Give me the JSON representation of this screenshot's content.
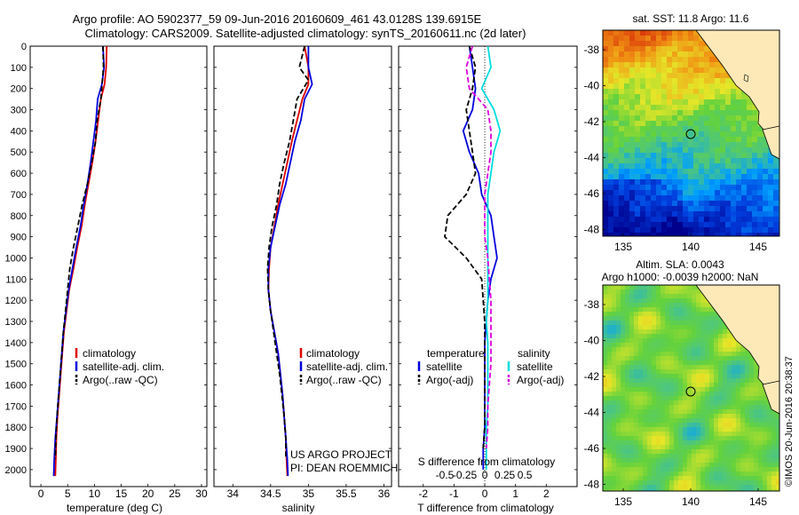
{
  "title_line1": "Argo profile: AO 5902377_59 09-Jun-2016 20160609_461 43.0128S 139.6915E",
  "title_line2": "Climatology: CARS2009. Satellite-adjusted climatology: synTS_20160611.nc (2d later)",
  "colors": {
    "climatology": "#dd0000",
    "satellite": "#0000dd",
    "argo": "#000000",
    "salinity_sat": "#00dddd",
    "salinity_argo": "#dd00dd"
  },
  "depth_ticks": [
    0,
    100,
    200,
    300,
    400,
    500,
    600,
    700,
    800,
    900,
    1000,
    1100,
    1200,
    1300,
    1400,
    1500,
    1600,
    1700,
    1800,
    1900,
    2000
  ],
  "panels": {
    "temp": {
      "xlabel": "temperature (deg C)",
      "ticks": [
        0,
        5,
        10,
        15,
        20,
        25,
        30
      ],
      "legend": [
        "climatology",
        "satellite-adj. clim.",
        "Argo(..raw -QC)"
      ]
    },
    "sal": {
      "xlabel": "salinity",
      "ticks": [
        "34",
        "34.5",
        "35",
        "35.5",
        "36"
      ],
      "legend": [
        "climatology",
        "satellite-adj. clim.",
        "Argo(..raw -QC)"
      ],
      "credit1": "US ARGO PROJECT",
      "credit2": "PI: DEAN ROEMMICH"
    },
    "diff": {
      "xlabel": "T difference from climatology",
      "xlabel_top": "S difference from climatology",
      "ticks_t": [
        "-2",
        "-1",
        "0",
        "1",
        "2"
      ],
      "ticks_s": [
        "-0.5",
        "-0.25",
        "0",
        "0.25",
        "0.5"
      ],
      "legend_t_head": "temperature",
      "legend_t": [
        "satellite",
        "Argo(-adj)"
      ],
      "legend_s_head": "salinity",
      "legend_s": [
        "satellite",
        "Argo(-adj)"
      ]
    }
  },
  "maps": {
    "sst": {
      "title": "sat. SST: 11.8  Argo: 11.6",
      "yticks": [
        "-38",
        "-40",
        "-42",
        "-44",
        "-46",
        "-48"
      ],
      "xticks": [
        "135",
        "140",
        "145"
      ]
    },
    "sla": {
      "title1": "Altim. SLA: 0.0043",
      "title2": "Argo h1000: -0.0039 h2000: NaN",
      "yticks": [
        "-38",
        "-40",
        "-42",
        "-44",
        "-46",
        "-48"
      ],
      "xticks": [
        "135",
        "140",
        "145"
      ]
    }
  },
  "side_stamp": "©IMOS 20-Jun-2016 20:38:37",
  "chart_data": [
    {
      "type": "line",
      "title": "",
      "xlabel": "temperature (deg C)",
      "ylabel": "",
      "xlim": [
        -2,
        31
      ],
      "ylim": [
        2080,
        0
      ],
      "series": [
        {
          "name": "climatology",
          "x": [
            12.3,
            12.2,
            11.9,
            11.2,
            10.7,
            10.2,
            9.6,
            8.9,
            8.2,
            7.6,
            6.8,
            6.1,
            5.3,
            4.8,
            4.3,
            4.0,
            3.7,
            3.4,
            3.1,
            2.9,
            2.8,
            2.7
          ],
          "depth": [
            0,
            100,
            180,
            250,
            350,
            450,
            550,
            650,
            750,
            850,
            950,
            1050,
            1150,
            1250,
            1350,
            1450,
            1550,
            1650,
            1750,
            1850,
            1950,
            2030
          ]
        },
        {
          "name": "satellite-adj. clim.",
          "x": [
            11.6,
            11.8,
            11.4,
            10.6,
            10.3,
            9.8,
            9.3,
            8.7,
            8.0,
            7.4,
            6.6,
            5.9,
            5.2,
            4.7,
            4.2,
            3.9,
            3.6,
            3.3,
            3.0,
            2.7,
            2.5,
            2.4
          ],
          "depth": [
            0,
            100,
            180,
            250,
            350,
            450,
            550,
            650,
            750,
            850,
            950,
            1050,
            1150,
            1250,
            1350,
            1450,
            1550,
            1650,
            1750,
            1850,
            1950,
            2030
          ]
        },
        {
          "name": "Argo(..raw -QC)",
          "x": [
            11.6,
            11.7,
            11.5,
            11.2,
            10.5,
            10.2,
            9.5,
            8.7,
            7.7,
            6.9,
            6.1,
            5.4,
            5.0,
            4.6,
            4.2,
            3.9,
            3.6,
            3.3,
            3.0,
            2.8,
            2.7
          ],
          "depth": [
            0,
            100,
            160,
            250,
            350,
            450,
            550,
            650,
            750,
            850,
            950,
            1050,
            1150,
            1250,
            1350,
            1450,
            1550,
            1650,
            1750,
            1850,
            1950
          ]
        }
      ]
    },
    {
      "type": "line",
      "title": "",
      "xlabel": "salinity",
      "ylabel": "",
      "xlim": [
        33.75,
        36.1
      ],
      "ylim": [
        2080,
        0
      ],
      "series": [
        {
          "name": "climatology",
          "x": [
            34.95,
            35.0,
            35.0,
            34.92,
            34.85,
            34.78,
            34.72,
            34.66,
            34.6,
            34.55,
            34.5,
            34.48,
            34.47,
            34.5,
            34.55,
            34.6,
            34.63,
            34.66,
            34.68,
            34.7,
            34.71,
            34.72
          ],
          "depth": [
            0,
            100,
            180,
            250,
            350,
            450,
            550,
            650,
            750,
            850,
            950,
            1050,
            1150,
            1250,
            1350,
            1450,
            1550,
            1650,
            1750,
            1850,
            1950,
            2030
          ]
        },
        {
          "name": "satellite-adj. clim.",
          "x": [
            35.0,
            35.0,
            35.05,
            34.95,
            34.9,
            34.82,
            34.76,
            34.7,
            34.62,
            34.56,
            34.5,
            34.47,
            34.47,
            34.5,
            34.55,
            34.6,
            34.63,
            34.66,
            34.68,
            34.7,
            34.72,
            34.73
          ],
          "depth": [
            0,
            100,
            180,
            250,
            350,
            450,
            550,
            650,
            750,
            850,
            950,
            1050,
            1150,
            1250,
            1350,
            1450,
            1550,
            1650,
            1750,
            1850,
            1950,
            2030
          ]
        },
        {
          "name": "Argo(..raw -QC)",
          "x": [
            34.95,
            34.88,
            35.0,
            34.85,
            34.8,
            34.75,
            34.68,
            34.62,
            34.58,
            34.52,
            34.48,
            34.46,
            34.47,
            34.5,
            34.54,
            34.58,
            34.62,
            34.65,
            34.68,
            34.7,
            34.7
          ],
          "depth": [
            0,
            100,
            160,
            250,
            350,
            450,
            550,
            650,
            750,
            850,
            950,
            1050,
            1150,
            1250,
            1350,
            1450,
            1550,
            1650,
            1750,
            1850,
            1950
          ]
        }
      ]
    },
    {
      "type": "line",
      "title": "",
      "xlabel": "T difference from climatology",
      "ylabel": "",
      "xlim": [
        -2.8,
        3.0
      ],
      "ylim": [
        2080,
        0
      ],
      "series": [
        {
          "name": "temperature satellite",
          "x": [
            -0.5,
            -0.4,
            -0.3,
            -0.4,
            -0.7,
            -0.5,
            -0.2,
            -0.1,
            0.2,
            0.3,
            0.4,
            0.2,
            0.1,
            0.05,
            0.0,
            0.0,
            0.0,
            0.0,
            0.0,
            -0.05,
            -0.05
          ],
          "depth": [
            0,
            100,
            200,
            300,
            400,
            500,
            600,
            700,
            800,
            900,
            1000,
            1100,
            1200,
            1300,
            1400,
            1500,
            1600,
            1700,
            1800,
            1900,
            2000
          ]
        },
        {
          "name": "temperature Argo(-adj)",
          "x": [
            -0.5,
            -0.3,
            -0.4,
            -0.6,
            -0.5,
            -0.4,
            -0.3,
            -0.6,
            -1.2,
            -1.3,
            -0.6,
            -0.1,
            -0.05,
            0.0,
            0.0,
            0.0,
            0.0,
            0.0,
            0.0,
            -0.05
          ],
          "depth": [
            0,
            100,
            200,
            300,
            400,
            500,
            600,
            700,
            800,
            900,
            1000,
            1100,
            1200,
            1300,
            1400,
            1500,
            1600,
            1700,
            1800,
            1900
          ]
        },
        {
          "name": "salinity satellite",
          "x": [
            0.1,
            0.2,
            -0.1,
            0.3,
            0.5,
            0.3,
            0.2,
            0.1,
            0.1,
            0.1,
            0.1,
            0.1,
            0.1,
            0.05,
            0.1,
            0.1,
            0.1,
            0.1,
            0.05,
            0.05,
            0.05
          ],
          "depth": [
            0,
            100,
            200,
            300,
            400,
            500,
            600,
            700,
            800,
            900,
            1000,
            1100,
            1200,
            1300,
            1400,
            1500,
            1600,
            1700,
            1800,
            1900,
            2000
          ]
        },
        {
          "name": "salinity Argo(-adj)",
          "x": [
            -0.4,
            -0.6,
            -0.5,
            0.1,
            0.2,
            0.2,
            0.1,
            0.0,
            0.0,
            0.0,
            0.1,
            0.15,
            0.2,
            0.2,
            0.2,
            0.2,
            0.15,
            0.1,
            0.1,
            0.05
          ],
          "depth": [
            0,
            100,
            200,
            300,
            400,
            500,
            600,
            700,
            800,
            900,
            1000,
            1100,
            1200,
            1300,
            1400,
            1500,
            1600,
            1700,
            1800,
            1900
          ]
        }
      ]
    }
  ]
}
